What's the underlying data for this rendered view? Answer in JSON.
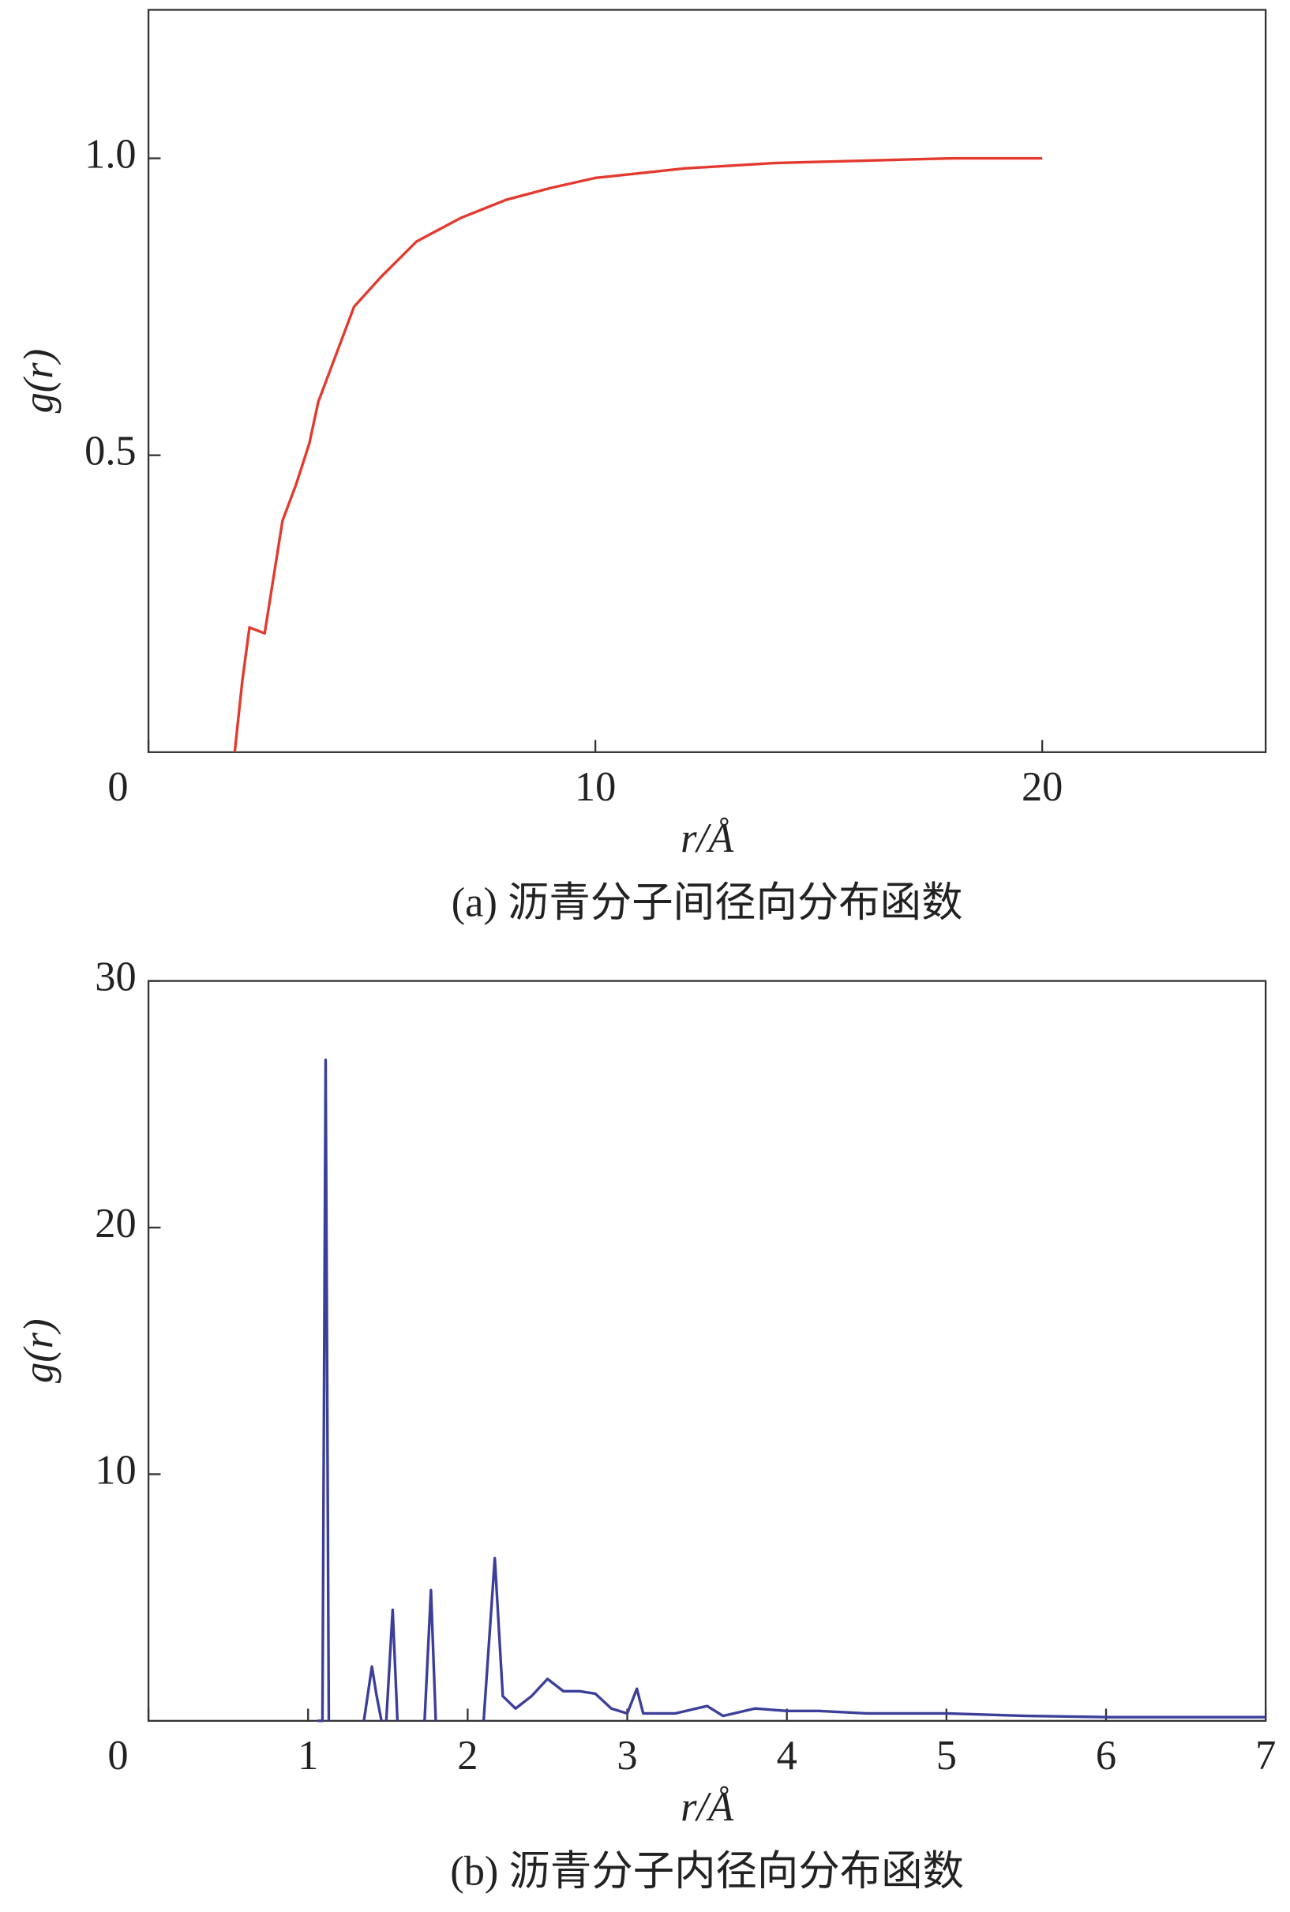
{
  "chart_data": [
    {
      "type": "line",
      "caption": "(a) 沥青分子间径向分布函数",
      "x_label": "r/Å",
      "y_label": "g(r)",
      "xlim": [
        0,
        25
      ],
      "ylim": [
        0,
        1.25
      ],
      "xticks": [
        0,
        10,
        20
      ],
      "yticks": [
        0.5,
        {
          "value": 1,
          "label": "1.0"
        }
      ],
      "series": [
        {
          "color": "#e33a2f",
          "x": [
            1.93,
            2.1,
            2.26,
            2.6,
            3.0,
            3.3,
            3.6,
            3.8,
            4.2,
            4.6,
            5.2,
            6,
            7,
            8,
            9,
            10,
            12,
            14,
            16,
            18,
            20
          ],
          "values": [
            0,
            0.12,
            0.21,
            0.2,
            0.39,
            0.45,
            0.52,
            0.59,
            0.67,
            0.75,
            0.8,
            0.86,
            0.9,
            0.93,
            0.95,
            0.967,
            0.983,
            0.992,
            0.996,
            1.0,
            1.0
          ]
        }
      ]
    },
    {
      "type": "line",
      "caption": "(b) 沥青分子内径向分布函数",
      "x_label": "r/Å",
      "y_label": "g(r)",
      "xlim": [
        0,
        7
      ],
      "ylim": [
        0,
        30
      ],
      "xticks": [
        0,
        1,
        2,
        3,
        4,
        5,
        6,
        7
      ],
      "yticks": [
        10,
        20,
        30
      ],
      "series": [
        {
          "color": "#3b3f9a",
          "x": [
            1.06,
            1.09,
            1.11,
            1.13,
            1.2,
            1.35,
            1.4,
            1.43,
            1.46,
            1.47,
            1.49,
            1.53,
            1.56,
            1.6,
            1.73,
            1.77,
            1.8,
            1.9,
            2.1,
            2.17,
            2.22,
            2.3,
            2.4,
            2.5,
            2.6,
            2.7,
            2.8,
            2.9,
            3.0,
            3.06,
            3.1,
            3.3,
            3.5,
            3.6,
            3.8,
            4.0,
            4.2,
            4.5,
            4.8,
            5.0,
            5.5,
            6,
            7
          ],
          "values": [
            0,
            0,
            26.8,
            0,
            null,
            0,
            2.2,
            1,
            0,
            null,
            0,
            4.5,
            0,
            null,
            0,
            5.3,
            0,
            null,
            0,
            6.6,
            1,
            0.5,
            1,
            1.7,
            1.2,
            1.2,
            1.1,
            0.5,
            0.3,
            1.3,
            0.3,
            0.3,
            0.6,
            0.2,
            0.5,
            0.4,
            0.4,
            0.3,
            0.3,
            0.3,
            0.2,
            0.15,
            0.15
          ]
        }
      ]
    }
  ]
}
